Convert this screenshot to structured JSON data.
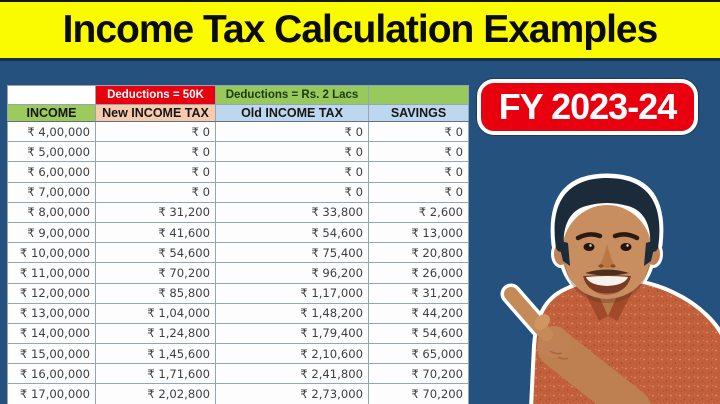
{
  "title": {
    "text": "Income Tax Calculation Examples"
  },
  "badge": {
    "text": "FY 2023-24"
  },
  "table": {
    "banner_row": {
      "income_blank": "",
      "new_tax_deduction": "Deductions = 50K",
      "old_tax_deduction": "Deductions = Rs. 2 Lacs",
      "savings_blank": ""
    },
    "columns": [
      "INCOME",
      "New INCOME TAX",
      "Old INCOME TAX",
      "SAVINGS"
    ],
    "rows": [
      [
        "₹ 4,00,000",
        "₹ 0",
        "₹ 0",
        "₹ 0"
      ],
      [
        "₹ 5,00,000",
        "₹ 0",
        "₹ 0",
        "₹ 0"
      ],
      [
        "₹ 6,00,000",
        "₹ 0",
        "₹ 0",
        "₹ 0"
      ],
      [
        "₹ 7,00,000",
        "₹ 0",
        "₹ 0",
        "₹ 0"
      ],
      [
        "₹ 8,00,000",
        "₹ 31,200",
        "₹ 33,800",
        "₹ 2,600"
      ],
      [
        "₹ 9,00,000",
        "₹ 41,600",
        "₹ 54,600",
        "₹ 13,000"
      ],
      [
        "₹ 10,00,000",
        "₹ 54,600",
        "₹ 75,400",
        "₹ 20,800"
      ],
      [
        "₹ 11,00,000",
        "₹ 70,200",
        "₹ 96,200",
        "₹ 26,000"
      ],
      [
        "₹ 12,00,000",
        "₹ 85,800",
        "₹ 1,17,000",
        "₹ 31,200"
      ],
      [
        "₹ 13,00,000",
        "₹ 1,04,000",
        "₹ 1,48,200",
        "₹ 44,200"
      ],
      [
        "₹ 14,00,000",
        "₹ 1,24,800",
        "₹ 1,79,400",
        "₹ 54,600"
      ],
      [
        "₹ 15,00,000",
        "₹ 1,45,600",
        "₹ 2,10,600",
        "₹ 65,000"
      ],
      [
        "₹ 16,00,000",
        "₹ 1,71,600",
        "₹ 2,41,800",
        "₹ 70,200"
      ],
      [
        "₹ 17,00,000",
        "₹ 2,02,800",
        "₹ 2,73,000",
        "₹ 70,200"
      ]
    ]
  },
  "chart_data": {
    "type": "table",
    "title": "Income Tax Calculation Examples",
    "subtitle": "FY 2023-24",
    "annotations": [
      "Deductions = 50K (New regime)",
      "Deductions = Rs. 2 Lacs (Old regime)"
    ],
    "columns": [
      "INCOME",
      "New INCOME TAX",
      "Old INCOME TAX",
      "SAVINGS"
    ],
    "series": [
      {
        "name": "INCOME",
        "values": [
          400000,
          500000,
          600000,
          700000,
          800000,
          900000,
          1000000,
          1100000,
          1200000,
          1300000,
          1400000,
          1500000,
          1600000,
          1700000
        ]
      },
      {
        "name": "New INCOME TAX",
        "values": [
          0,
          0,
          0,
          0,
          31200,
          41600,
          54600,
          70200,
          85800,
          104000,
          124800,
          145600,
          171600,
          202800
        ]
      },
      {
        "name": "Old INCOME TAX",
        "values": [
          0,
          0,
          0,
          0,
          33800,
          54600,
          75400,
          96200,
          117000,
          148200,
          179400,
          210600,
          241800,
          273000
        ]
      },
      {
        "name": "SAVINGS",
        "values": [
          0,
          0,
          0,
          0,
          2600,
          13000,
          20800,
          26000,
          31200,
          44200,
          54600,
          65000,
          70200,
          70200
        ]
      }
    ],
    "currency": "₹"
  },
  "colors": {
    "bg_navy": "#24517D",
    "title_yellow": "#FBFB00",
    "badge_red": "#E8000F",
    "banner_red": "#E8000F",
    "banner_green": "#97C95D",
    "header_income_green": "#9DCB5B",
    "header_new_peach": "#F8CBAD",
    "header_old_blue": "#BDD7EE"
  }
}
